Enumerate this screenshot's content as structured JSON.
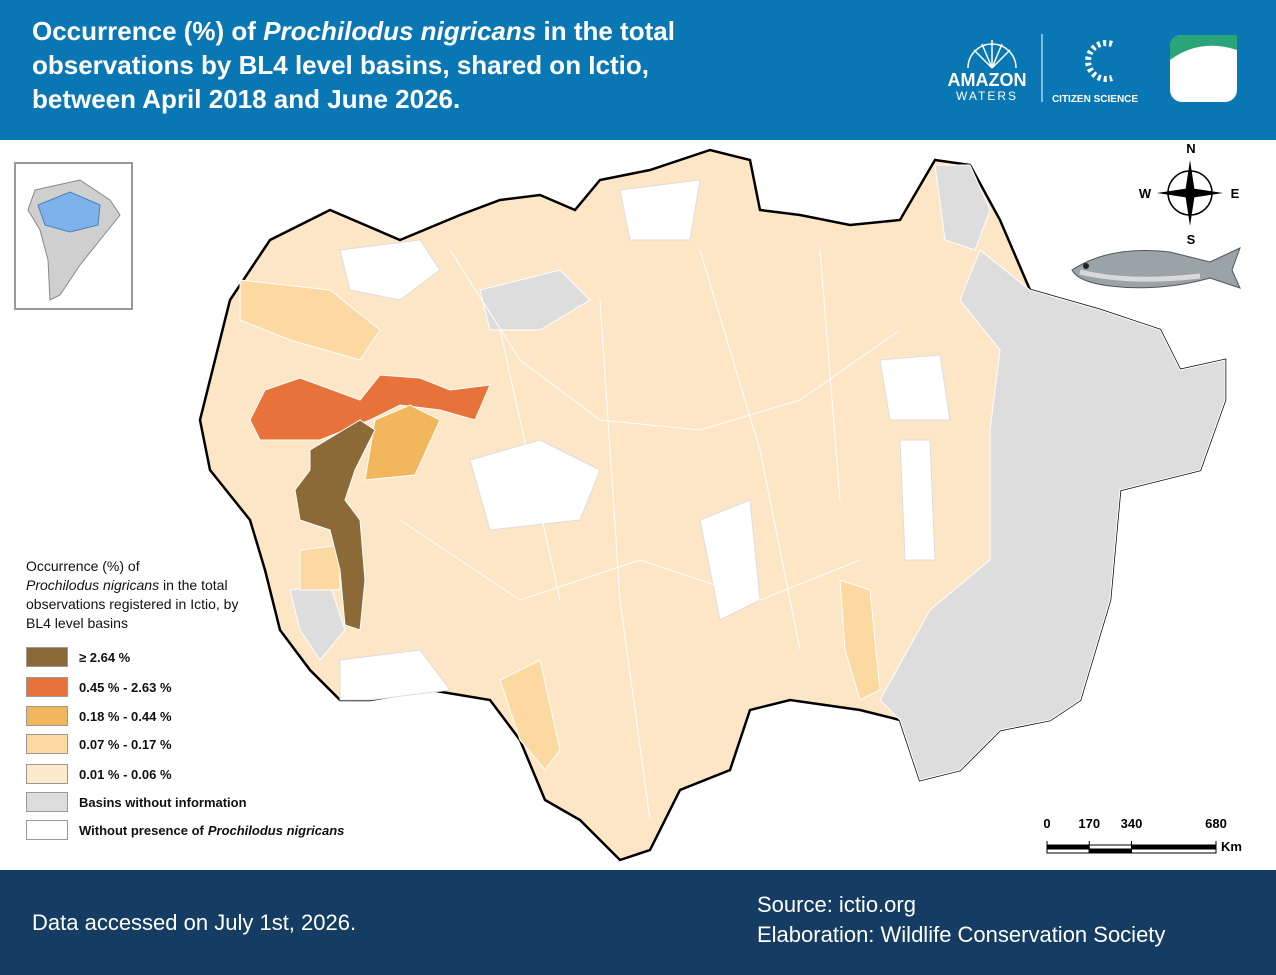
{
  "header": {
    "title": [
      "Occurrence (%) of",
      "Prochilodus nigricans",
      "in the total observations by BL4 level basins, shared on Ictio, between April 2018 and June 2026."
    ],
    "logos": {
      "amazon": "AMAZON",
      "waters": "WATERS",
      "citizen": "CITIZEN SCIENCE"
    }
  },
  "compass": {
    "n": "N",
    "e": "E",
    "s": "S",
    "w": "W"
  },
  "legend": {
    "title": [
      "Occurrence (%) of",
      "Prochilodus nigricans",
      "in the total observations registered in Ictio, by BL4 level basins"
    ],
    "items": [
      {
        "label": "≥ 2.64 %",
        "color": "#8b6a37"
      },
      {
        "label": "0.45 % - 2.63 %",
        "color": "#e8733a"
      },
      {
        "label": "0.18 % - 0.44 %",
        "color": "#f2b75c"
      },
      {
        "label": "0.07 % - 0.17 %",
        "color": "#fcd9a0"
      },
      {
        "label": "0.01 % - 0.06 %",
        "color": "#fdeacd"
      },
      {
        "label": "Basins without information",
        "color": "#dddddd"
      },
      {
        "label": [
          "Without presence of",
          "Prochilodus nigricans"
        ],
        "color": "#ffffff"
      }
    ]
  },
  "scale": {
    "ticks": [
      0,
      170,
      340,
      680
    ],
    "unit": "Km"
  },
  "footer": {
    "accessed": "Data accessed on July 1st, 2026.",
    "source": "Source: ictio.org",
    "elaboration": "Elaboration: Wildlife Conservation Society"
  }
}
